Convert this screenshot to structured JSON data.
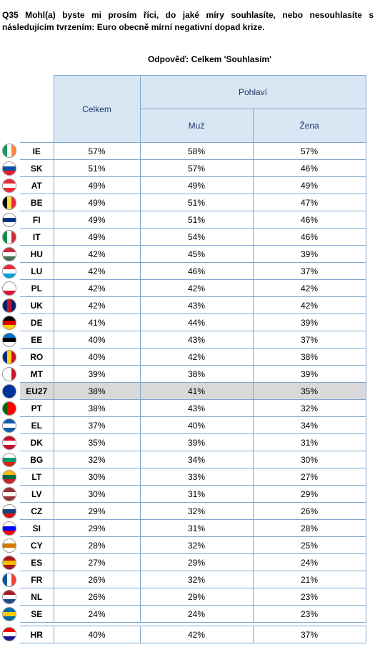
{
  "question": "Q35 Mohl(a) byste mi prosím říci, do jaké míry souhlasíte, nebo nesouhlasíte s následujícím tvrzením: Euro obecně mírní negativní dopad krize.",
  "subtitle": "Odpověď: Celkem 'Souhlasím'",
  "headers": {
    "total": "Celkem",
    "gender": "Pohlaví",
    "male": "Muž",
    "female": "Žena"
  },
  "rows": [
    {
      "code": "IE",
      "total": "57%",
      "male": "58%",
      "female": "57%",
      "flag_colors": [
        "#169b62",
        "#ffffff",
        "#ff883e"
      ],
      "flag_dir": "v"
    },
    {
      "code": "SK",
      "total": "51%",
      "male": "57%",
      "female": "46%",
      "flag_colors": [
        "#ffffff",
        "#0b4ea2",
        "#ee1c25"
      ],
      "flag_dir": "h"
    },
    {
      "code": "AT",
      "total": "49%",
      "male": "49%",
      "female": "49%",
      "flag_colors": [
        "#ed2939",
        "#ffffff",
        "#ed2939"
      ],
      "flag_dir": "h"
    },
    {
      "code": "BE",
      "total": "49%",
      "male": "51%",
      "female": "47%",
      "flag_colors": [
        "#000000",
        "#fae042",
        "#ed2939"
      ],
      "flag_dir": "v"
    },
    {
      "code": "FI",
      "total": "49%",
      "male": "51%",
      "female": "46%",
      "flag_colors": [
        "#ffffff",
        "#003580",
        "#ffffff"
      ],
      "flag_dir": "h"
    },
    {
      "code": "IT",
      "total": "49%",
      "male": "54%",
      "female": "46%",
      "flag_colors": [
        "#009246",
        "#ffffff",
        "#ce2b37"
      ],
      "flag_dir": "v"
    },
    {
      "code": "HU",
      "total": "42%",
      "male": "45%",
      "female": "39%",
      "flag_colors": [
        "#cd2a3e",
        "#ffffff",
        "#436f4d"
      ],
      "flag_dir": "h"
    },
    {
      "code": "LU",
      "total": "42%",
      "male": "46%",
      "female": "37%",
      "flag_colors": [
        "#ed2939",
        "#ffffff",
        "#00a1de"
      ],
      "flag_dir": "h"
    },
    {
      "code": "PL",
      "total": "42%",
      "male": "42%",
      "female": "42%",
      "flag_colors": [
        "#ffffff",
        "#ffffff",
        "#dc143c"
      ],
      "flag_dir": "h"
    },
    {
      "code": "UK",
      "total": "42%",
      "male": "43%",
      "female": "42%",
      "flag_colors": [
        "#012169",
        "#c8102e",
        "#012169"
      ],
      "flag_dir": "v"
    },
    {
      "code": "DE",
      "total": "41%",
      "male": "44%",
      "female": "39%",
      "flag_colors": [
        "#000000",
        "#dd0000",
        "#ffce00"
      ],
      "flag_dir": "h"
    },
    {
      "code": "EE",
      "total": "40%",
      "male": "43%",
      "female": "37%",
      "flag_colors": [
        "#0072ce",
        "#000000",
        "#ffffff"
      ],
      "flag_dir": "h"
    },
    {
      "code": "RO",
      "total": "40%",
      "male": "42%",
      "female": "38%",
      "flag_colors": [
        "#002b7f",
        "#fcd116",
        "#ce1126"
      ],
      "flag_dir": "v"
    },
    {
      "code": "MT",
      "total": "39%",
      "male": "38%",
      "female": "39%",
      "flag_colors": [
        "#ffffff",
        "#ffffff",
        "#cf142b"
      ],
      "flag_dir": "v"
    },
    {
      "code": "EU27",
      "total": "38%",
      "male": "41%",
      "female": "35%",
      "flag_colors": [
        "#003399",
        "#003399",
        "#003399"
      ],
      "flag_dir": "v",
      "highlight": true
    },
    {
      "code": "PT",
      "total": "38%",
      "male": "43%",
      "female": "32%",
      "flag_colors": [
        "#006600",
        "#ff0000",
        "#ff0000"
      ],
      "flag_dir": "v"
    },
    {
      "code": "EL",
      "total": "37%",
      "male": "40%",
      "female": "34%",
      "flag_colors": [
        "#0d5eaf",
        "#ffffff",
        "#0d5eaf"
      ],
      "flag_dir": "h"
    },
    {
      "code": "DK",
      "total": "35%",
      "male": "39%",
      "female": "31%",
      "flag_colors": [
        "#c8102e",
        "#ffffff",
        "#c8102e"
      ],
      "flag_dir": "h"
    },
    {
      "code": "BG",
      "total": "32%",
      "male": "34%",
      "female": "30%",
      "flag_colors": [
        "#ffffff",
        "#00966e",
        "#d62612"
      ],
      "flag_dir": "h"
    },
    {
      "code": "LT",
      "total": "30%",
      "male": "33%",
      "female": "27%",
      "flag_colors": [
        "#fdb913",
        "#006a44",
        "#c1272d"
      ],
      "flag_dir": "h"
    },
    {
      "code": "LV",
      "total": "30%",
      "male": "31%",
      "female": "29%",
      "flag_colors": [
        "#9e3039",
        "#ffffff",
        "#9e3039"
      ],
      "flag_dir": "h"
    },
    {
      "code": "CZ",
      "total": "29%",
      "male": "32%",
      "female": "26%",
      "flag_colors": [
        "#ffffff",
        "#11457e",
        "#d7141a"
      ],
      "flag_dir": "h"
    },
    {
      "code": "SI",
      "total": "29%",
      "male": "31%",
      "female": "28%",
      "flag_colors": [
        "#ffffff",
        "#0000ff",
        "#ff0000"
      ],
      "flag_dir": "h"
    },
    {
      "code": "CY",
      "total": "28%",
      "male": "32%",
      "female": "25%",
      "flag_colors": [
        "#ffffff",
        "#d57800",
        "#ffffff"
      ],
      "flag_dir": "h"
    },
    {
      "code": "ES",
      "total": "27%",
      "male": "29%",
      "female": "24%",
      "flag_colors": [
        "#aa151b",
        "#f1bf00",
        "#aa151b"
      ],
      "flag_dir": "h"
    },
    {
      "code": "FR",
      "total": "26%",
      "male": "32%",
      "female": "21%",
      "flag_colors": [
        "#0055a4",
        "#ffffff",
        "#ef4135"
      ],
      "flag_dir": "v"
    },
    {
      "code": "NL",
      "total": "26%",
      "male": "29%",
      "female": "23%",
      "flag_colors": [
        "#ae1c28",
        "#ffffff",
        "#21468b"
      ],
      "flag_dir": "h"
    },
    {
      "code": "SE",
      "total": "24%",
      "male": "24%",
      "female": "23%",
      "flag_colors": [
        "#006aa7",
        "#fecc00",
        "#006aa7"
      ],
      "flag_dir": "h"
    }
  ],
  "extra_row": {
    "code": "HR",
    "total": "40%",
    "male": "42%",
    "female": "37%",
    "flag_colors": [
      "#ff0000",
      "#ffffff",
      "#171796"
    ],
    "flag_dir": "h"
  }
}
